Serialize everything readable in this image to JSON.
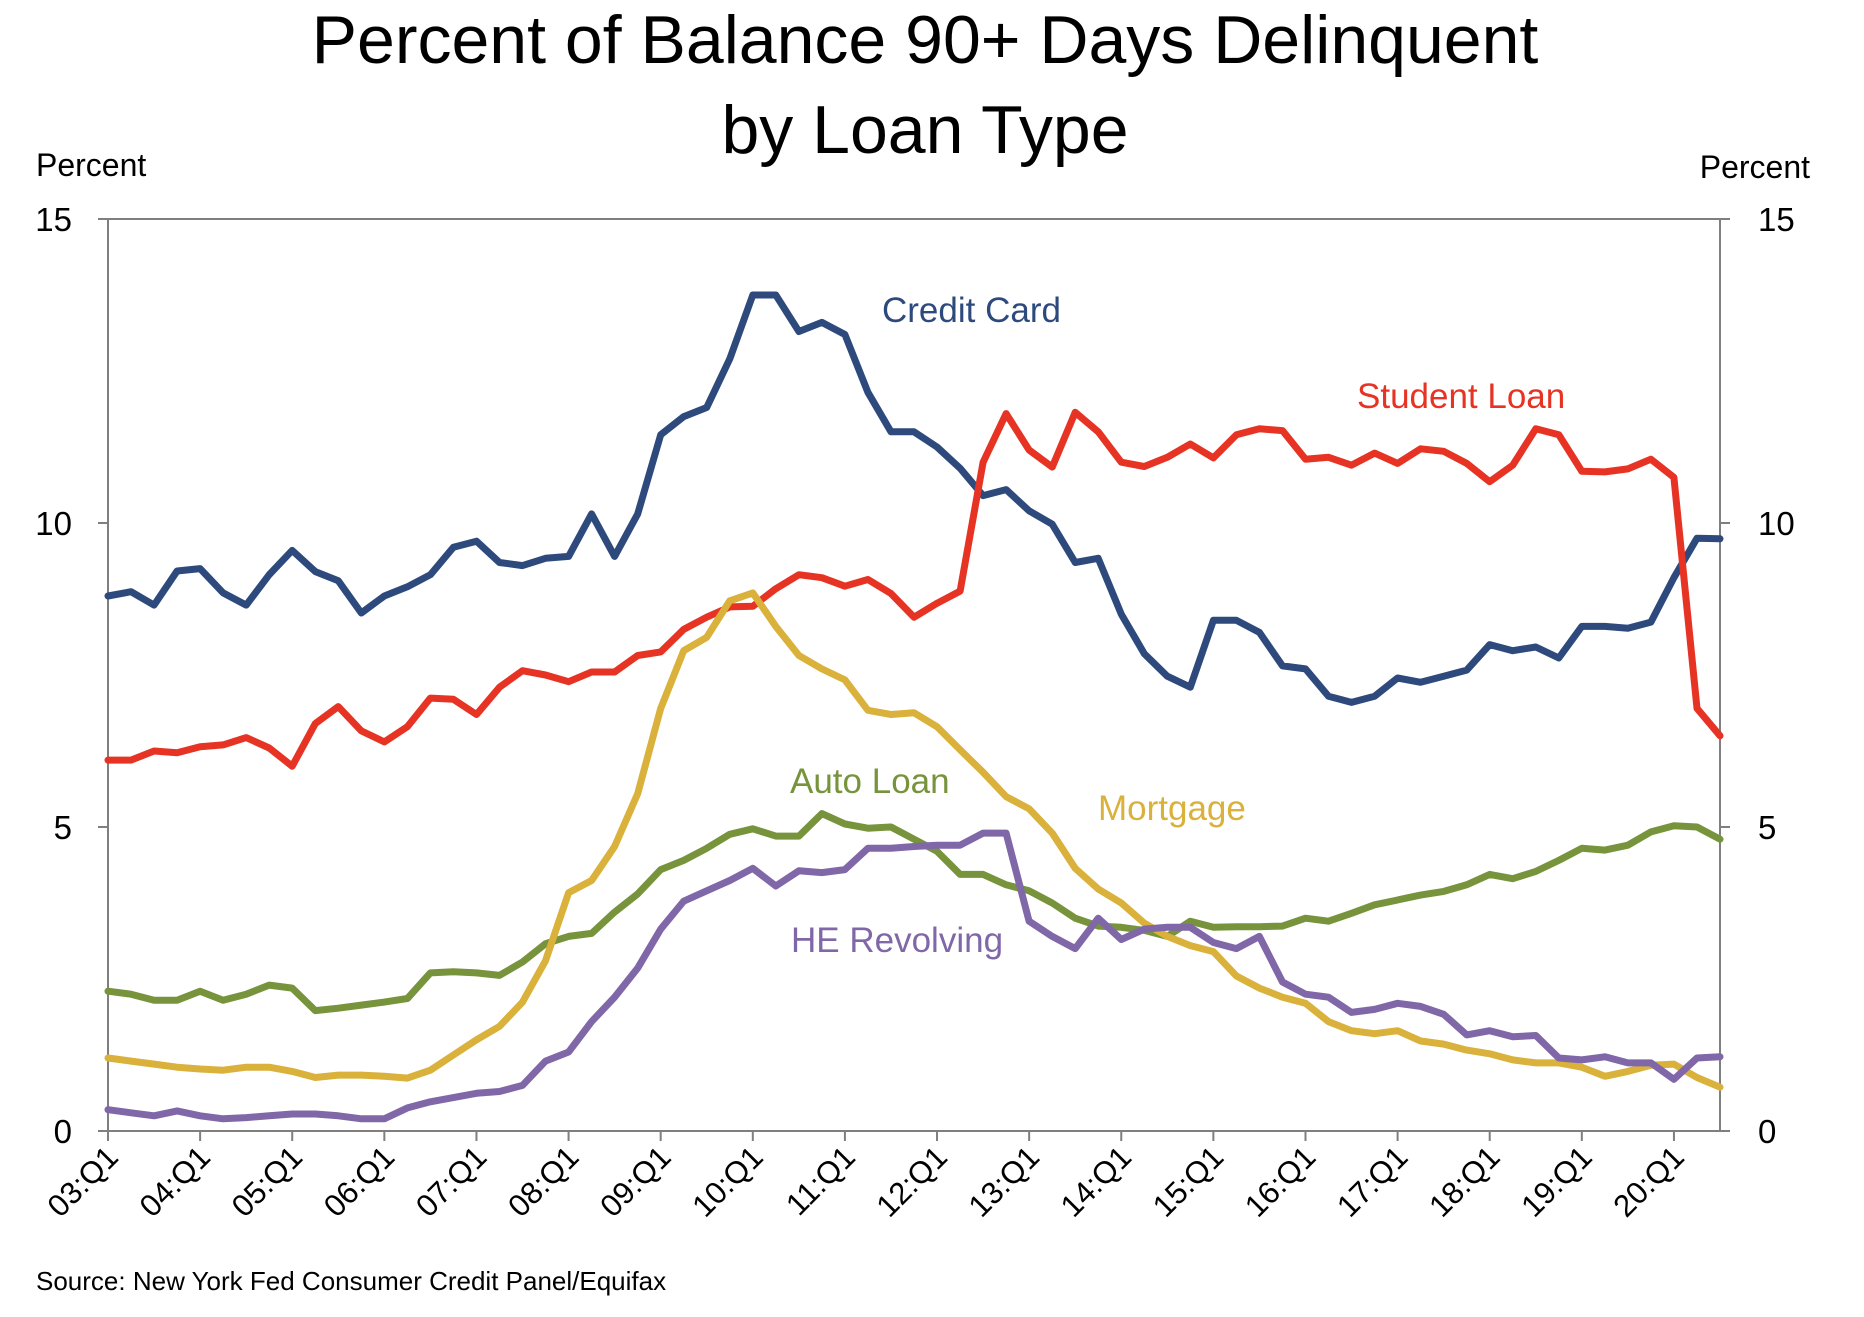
{
  "chart_data": {
    "type": "line",
    "title": "Percent of Balance 90+ Days Delinquent",
    "subtitle": "by Loan Type",
    "ylabel_left": "Percent",
    "ylabel_right": "Percent",
    "ylim": [
      0,
      15
    ],
    "yticks": [
      0,
      5,
      10,
      15
    ],
    "grid": false,
    "x": [
      "03:Q1",
      "03:Q2",
      "03:Q3",
      "03:Q4",
      "04:Q1",
      "04:Q2",
      "04:Q3",
      "04:Q4",
      "05:Q1",
      "05:Q2",
      "05:Q3",
      "05:Q4",
      "06:Q1",
      "06:Q2",
      "06:Q3",
      "06:Q4",
      "07:Q1",
      "07:Q2",
      "07:Q3",
      "07:Q4",
      "08:Q1",
      "08:Q2",
      "08:Q3",
      "08:Q4",
      "09:Q1",
      "09:Q2",
      "09:Q3",
      "09:Q4",
      "10:Q1",
      "10:Q2",
      "10:Q3",
      "10:Q4",
      "11:Q1",
      "11:Q2",
      "11:Q3",
      "11:Q4",
      "12:Q1",
      "12:Q2",
      "12:Q3",
      "12:Q4",
      "13:Q1",
      "13:Q2",
      "13:Q3",
      "13:Q4",
      "14:Q1",
      "14:Q2",
      "14:Q3",
      "14:Q4",
      "15:Q1",
      "15:Q2",
      "15:Q3",
      "15:Q4",
      "16:Q1",
      "16:Q2",
      "16:Q3",
      "16:Q4",
      "17:Q1",
      "17:Q2",
      "17:Q3",
      "17:Q4",
      "18:Q1",
      "18:Q2",
      "18:Q3",
      "18:Q4",
      "19:Q1",
      "19:Q2",
      "19:Q3",
      "19:Q4",
      "20:Q1",
      "20:Q2",
      "20:Q3"
    ],
    "x_tick_labels": [
      "03:Q1",
      "04:Q1",
      "05:Q1",
      "06:Q1",
      "07:Q1",
      "08:Q1",
      "09:Q1",
      "10:Q1",
      "11:Q1",
      "12:Q1",
      "13:Q1",
      "14:Q1",
      "15:Q1",
      "16:Q1",
      "17:Q1",
      "18:Q1",
      "19:Q1",
      "20:Q1"
    ],
    "series": [
      {
        "name": "Credit Card",
        "color": "#2e4a7d",
        "values": [
          8.8,
          8.87,
          8.65,
          9.21,
          9.25,
          8.85,
          8.65,
          9.15,
          9.55,
          9.2,
          9.05,
          8.52,
          8.8,
          8.95,
          9.15,
          9.6,
          9.7,
          9.35,
          9.3,
          9.42,
          9.45,
          10.15,
          9.45,
          10.15,
          11.45,
          11.75,
          11.9,
          12.7,
          13.75,
          13.75,
          13.15,
          13.3,
          13.1,
          12.15,
          11.5,
          11.5,
          11.25,
          10.9,
          10.45,
          10.55,
          10.2,
          9.98,
          9.35,
          9.42,
          8.5,
          7.85,
          7.48,
          7.3,
          8.4,
          8.4,
          8.2,
          7.65,
          7.6,
          7.15,
          7.05,
          7.15,
          7.45,
          7.38,
          7.48,
          7.58,
          8.0,
          7.9,
          7.96,
          7.78,
          8.3,
          8.3,
          8.27,
          8.37,
          9.1,
          9.75,
          9.74
        ]
      },
      {
        "name": "Student Loan",
        "color": "#e63323",
        "values": [
          6.1,
          6.1,
          6.25,
          6.22,
          6.32,
          6.35,
          6.47,
          6.3,
          6.0,
          6.7,
          6.98,
          6.58,
          6.4,
          6.65,
          7.12,
          7.1,
          6.85,
          7.3,
          7.57,
          7.5,
          7.39,
          7.55,
          7.55,
          7.82,
          7.88,
          8.25,
          8.45,
          8.62,
          8.63,
          8.92,
          9.15,
          9.1,
          8.96,
          9.07,
          8.84,
          8.45,
          8.68,
          8.88,
          11.0,
          11.8,
          11.2,
          10.92,
          11.82,
          11.5,
          11.0,
          10.93,
          11.08,
          11.3,
          11.07,
          11.45,
          11.55,
          11.52,
          11.05,
          11.08,
          10.95,
          11.15,
          10.98,
          11.22,
          11.18,
          10.98,
          10.68,
          10.95,
          11.55,
          11.45,
          10.85,
          10.84,
          10.89,
          11.05,
          10.75,
          6.95,
          6.5
        ]
      },
      {
        "name": "Auto Loan",
        "color": "#77933c",
        "values": [
          2.3,
          2.25,
          2.15,
          2.15,
          2.3,
          2.15,
          2.25,
          2.4,
          2.35,
          1.98,
          2.02,
          2.07,
          2.12,
          2.18,
          2.6,
          2.62,
          2.6,
          2.56,
          2.78,
          3.08,
          3.2,
          3.25,
          3.6,
          3.9,
          4.3,
          4.45,
          4.65,
          4.88,
          4.97,
          4.85,
          4.85,
          5.22,
          5.05,
          4.98,
          5.0,
          4.8,
          4.6,
          4.22,
          4.22,
          4.05,
          3.95,
          3.75,
          3.5,
          3.37,
          3.35,
          3.3,
          3.2,
          3.45,
          3.35,
          3.36,
          3.36,
          3.37,
          3.5,
          3.45,
          3.58,
          3.72,
          3.8,
          3.88,
          3.94,
          4.05,
          4.22,
          4.15,
          4.27,
          4.45,
          4.65,
          4.62,
          4.7,
          4.92,
          5.02,
          5.0,
          4.8
        ]
      },
      {
        "name": "Mortgage",
        "color": "#d9b13b",
        "values": [
          1.2,
          1.15,
          1.1,
          1.05,
          1.02,
          1.0,
          1.05,
          1.05,
          0.98,
          0.88,
          0.92,
          0.92,
          0.9,
          0.87,
          1.0,
          1.25,
          1.5,
          1.72,
          2.12,
          2.8,
          3.92,
          4.12,
          4.68,
          5.55,
          6.95,
          7.9,
          8.12,
          8.72,
          8.85,
          8.3,
          7.82,
          7.6,
          7.42,
          6.92,
          6.85,
          6.88,
          6.65,
          6.27,
          5.9,
          5.5,
          5.3,
          4.9,
          4.32,
          3.98,
          3.75,
          3.42,
          3.2,
          3.05,
          2.95,
          2.55,
          2.35,
          2.2,
          2.1,
          1.8,
          1.65,
          1.6,
          1.65,
          1.48,
          1.43,
          1.33,
          1.27,
          1.17,
          1.12,
          1.12,
          1.05,
          0.9,
          0.98,
          1.08,
          1.1,
          0.88,
          0.72
        ]
      },
      {
        "name": "HE Revolving",
        "color": "#7f67a8",
        "values": [
          0.35,
          0.3,
          0.25,
          0.33,
          0.25,
          0.2,
          0.22,
          0.25,
          0.28,
          0.28,
          0.25,
          0.2,
          0.2,
          0.38,
          0.48,
          0.55,
          0.62,
          0.65,
          0.75,
          1.15,
          1.3,
          1.8,
          2.2,
          2.68,
          3.32,
          3.78,
          3.95,
          4.12,
          4.32,
          4.03,
          4.28,
          4.25,
          4.3,
          4.65,
          4.65,
          4.68,
          4.7,
          4.7,
          4.9,
          4.9,
          3.45,
          3.2,
          3.0,
          3.5,
          3.15,
          3.32,
          3.35,
          3.35,
          3.1,
          3.0,
          3.2,
          2.45,
          2.25,
          2.2,
          1.95,
          2.0,
          2.1,
          2.05,
          1.92,
          1.58,
          1.65,
          1.55,
          1.57,
          1.2,
          1.17,
          1.22,
          1.12,
          1.12,
          0.85,
          1.2,
          1.22
        ]
      }
    ],
    "annotations": [
      {
        "text": "Credit Card",
        "color": "#2e4a7d"
      },
      {
        "text": "Student Loan",
        "color": "#e63323"
      },
      {
        "text": "Auto Loan",
        "color": "#77933c"
      },
      {
        "text": "Mortgage",
        "color": "#d9b13b"
      },
      {
        "text": "HE Revolving",
        "color": "#7f67a8"
      }
    ],
    "source": "Source: New York Fed Consumer Credit Panel/Equifax"
  }
}
